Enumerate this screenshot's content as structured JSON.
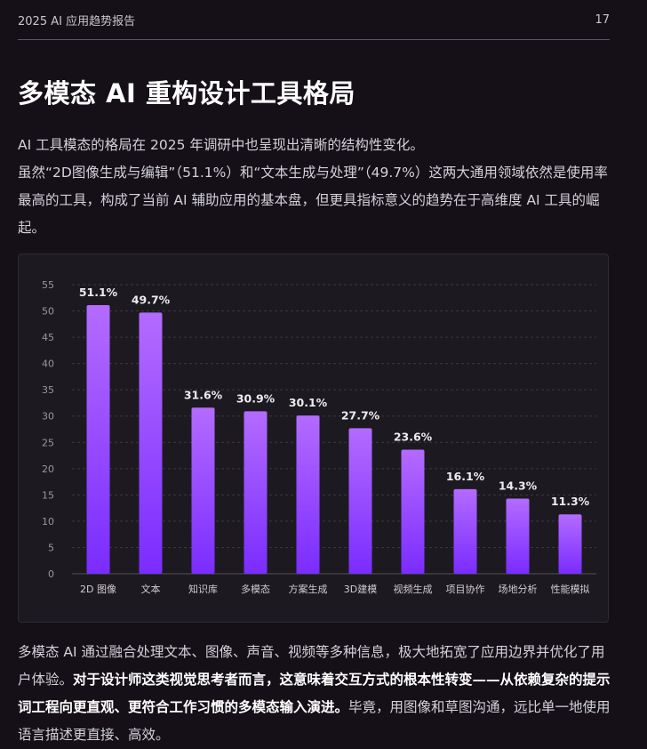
{
  "header": {
    "doc_title": "2025 AI 应用趋势报告",
    "page_number": "17"
  },
  "section": {
    "title": "多模态 AI 重构设计工具格局",
    "intro_line1": "AI 工具模态的格局在 2025 年调研中也呈现出清晰的结构性变化。",
    "intro_line2": "虽然“2D图像生成与编辑”（51.1%）和“文本生成与处理”（49.7%）这两大通用领域依然是使用率最高的工具，构成了当前 AI 辅助应用的基本盘，但更具指标意义的趋势在于高维度 AI 工具的崛起。",
    "body_plain1": "多模态 AI 通过融合处理文本、图像、声音、视频等多种信息，极大地拓宽了应用边界并优化了用户体验。",
    "body_bold": "对于设计师这类视觉思考者而言，这意味着交互方式的根本性转变——从依赖复杂的提示词工程向更直观、更符合工作习惯的多模态输入演进。",
    "body_plain2": "毕竟，用图像和草图沟通，远比单一地使用语言描述更直接、高效。"
  },
  "colors": {
    "background": "#150f18",
    "bar_top": "#b36bff",
    "bar_bottom": "#7a2cff"
  },
  "chart_data": {
    "type": "bar",
    "categories": [
      "2D 图像",
      "文本",
      "知识库",
      "多模态",
      "方案生成",
      "3D建模",
      "视频生成",
      "项目协作",
      "场地分析",
      "性能模拟"
    ],
    "values": [
      51.1,
      49.7,
      31.6,
      30.9,
      30.1,
      27.7,
      23.6,
      16.1,
      14.3,
      11.3
    ],
    "data_labels": [
      "51.1%",
      "49.7%",
      "31.6%",
      "30.9%",
      "30.1%",
      "27.7%",
      "23.6%",
      "16.1%",
      "14.3%",
      "11.3%"
    ],
    "yticks": [
      0,
      5,
      10,
      15,
      20,
      25,
      30,
      35,
      40,
      45,
      50,
      55
    ],
    "ylim": [
      0,
      55
    ],
    "grid": true,
    "title": "",
    "xlabel": "",
    "ylabel": ""
  }
}
